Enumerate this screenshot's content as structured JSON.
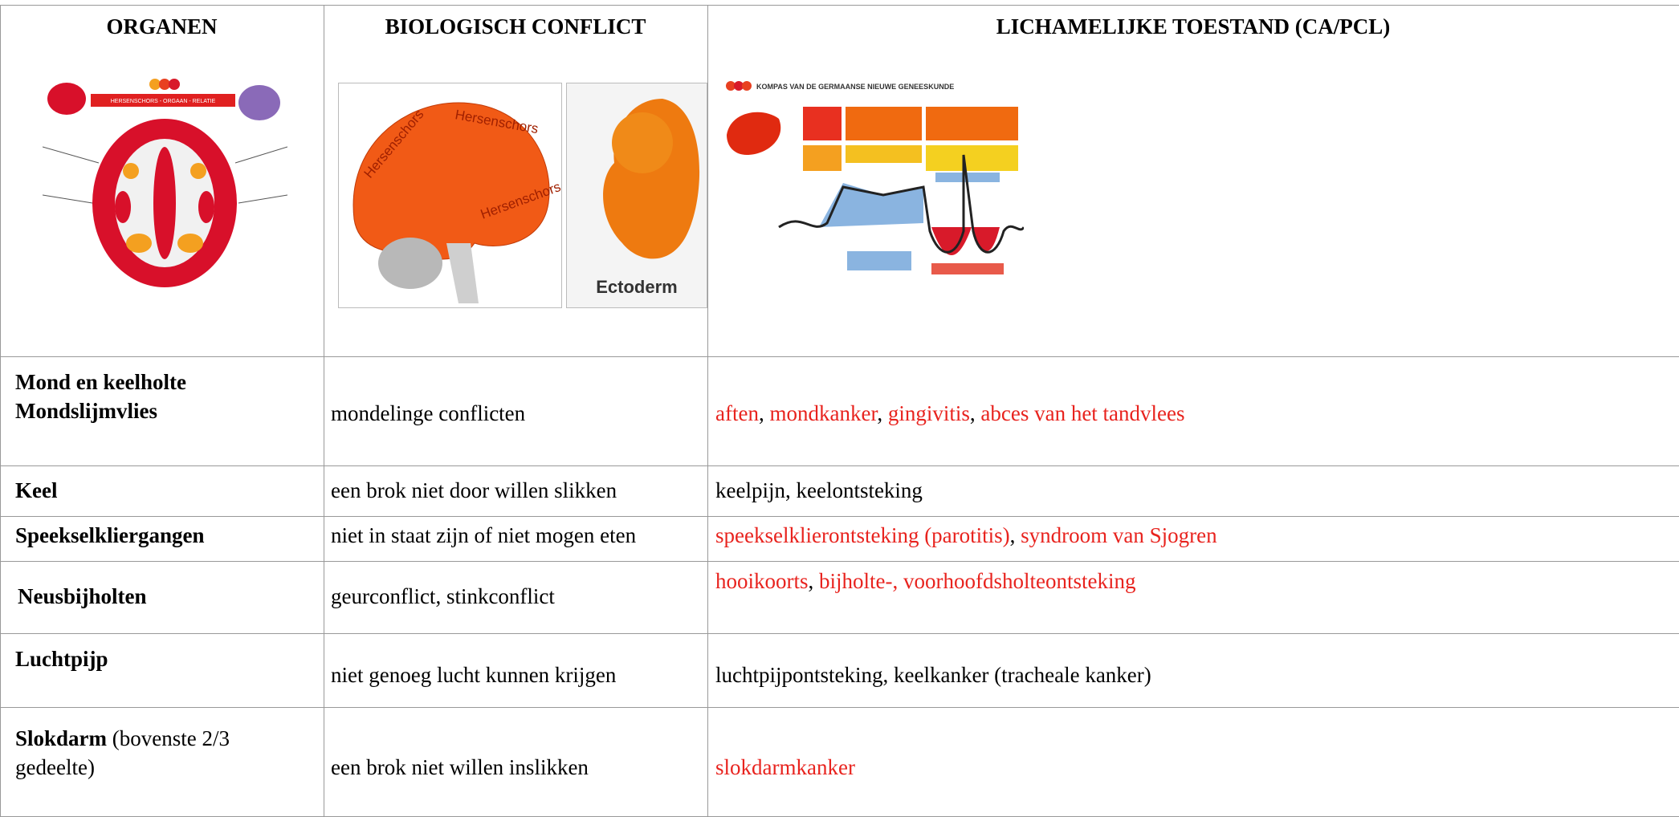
{
  "header": {
    "columns": [
      "ORGANEN",
      "BIOLOGISCH CONFLICT",
      "LICHAMELIJKE TOESTAND (CA/PCL)"
    ]
  },
  "images": {
    "organ_map": {
      "title": "HERSENSCHORS - ORGAAN - RELATIE"
    },
    "brain": {
      "labels": [
        "Hersenschors",
        "Hersenschors",
        "Hersenschors"
      ]
    },
    "embryo": {
      "label": "Ectoderm"
    },
    "compass": {
      "title": "KOMPAS VAN DE GERMAANSE NIEUWE GENEESKUNDE"
    }
  },
  "table": {
    "rows": [
      {
        "organ": [
          {
            "text": "Mond en keelholte",
            "bold": true
          },
          {
            "text": "Mondslijmvlies",
            "bold": true
          }
        ],
        "conflict": "mondelinge conflicten",
        "condition": [
          {
            "text": "aften",
            "color": "#e8231e"
          },
          {
            "text": ", ",
            "color": "#000000"
          },
          {
            "text": "mondkanker",
            "color": "#e8231e"
          },
          {
            "text": ", ",
            "color": "#000000"
          },
          {
            "text": "gingivitis",
            "color": "#e8231e"
          },
          {
            "text": ", ",
            "color": "#000000"
          },
          {
            "text": "abces van het tandvlees",
            "color": "#e8231e"
          }
        ]
      },
      {
        "organ": [
          {
            "text": "Keel",
            "bold": true
          }
        ],
        "conflict": "een brok niet door willen slikken",
        "condition": [
          {
            "text": "keelpijn, keelontsteking",
            "color": "#000000"
          }
        ]
      },
      {
        "organ": [
          {
            "text": "Speekselkliergangen",
            "bold": true
          }
        ],
        "conflict": "niet in staat zijn of niet mogen eten",
        "condition": [
          {
            "text": "speekselklierontsteking (parotitis)",
            "color": "#e8231e"
          },
          {
            "text": ", ",
            "color": "#000000"
          },
          {
            "text": "syndroom van Sjogren",
            "color": "#e8231e"
          }
        ]
      },
      {
        "organ": [
          {
            "text": "Neusbijholten",
            "bold": true
          }
        ],
        "conflict": "geurconflict, stinkconflict",
        "condition": [
          {
            "text": "hooikoorts",
            "color": "#e8231e"
          },
          {
            "text": ", ",
            "color": "#000000"
          },
          {
            "text": "bijholte-, voorhoofdsholteontsteking",
            "color": "#e8231e"
          }
        ]
      },
      {
        "organ": [
          {
            "text": "Luchtpijp",
            "bold": true
          }
        ],
        "conflict": "niet genoeg lucht kunnen krijgen",
        "condition": [
          {
            "text": "luchtpijpontsteking, keelkanker (tracheale kanker)",
            "color": "#000000"
          }
        ]
      },
      {
        "organ": [
          {
            "text": "Slokdarm",
            "bold": true
          },
          {
            "text": " (bovenste 2/3",
            "bold": false
          },
          {
            "text": "gedeelte)",
            "bold": false
          }
        ],
        "conflict": "een brok niet willen inslikken",
        "condition": [
          {
            "text": "slokdarmkanker",
            "color": "#e8231e"
          }
        ]
      }
    ]
  }
}
